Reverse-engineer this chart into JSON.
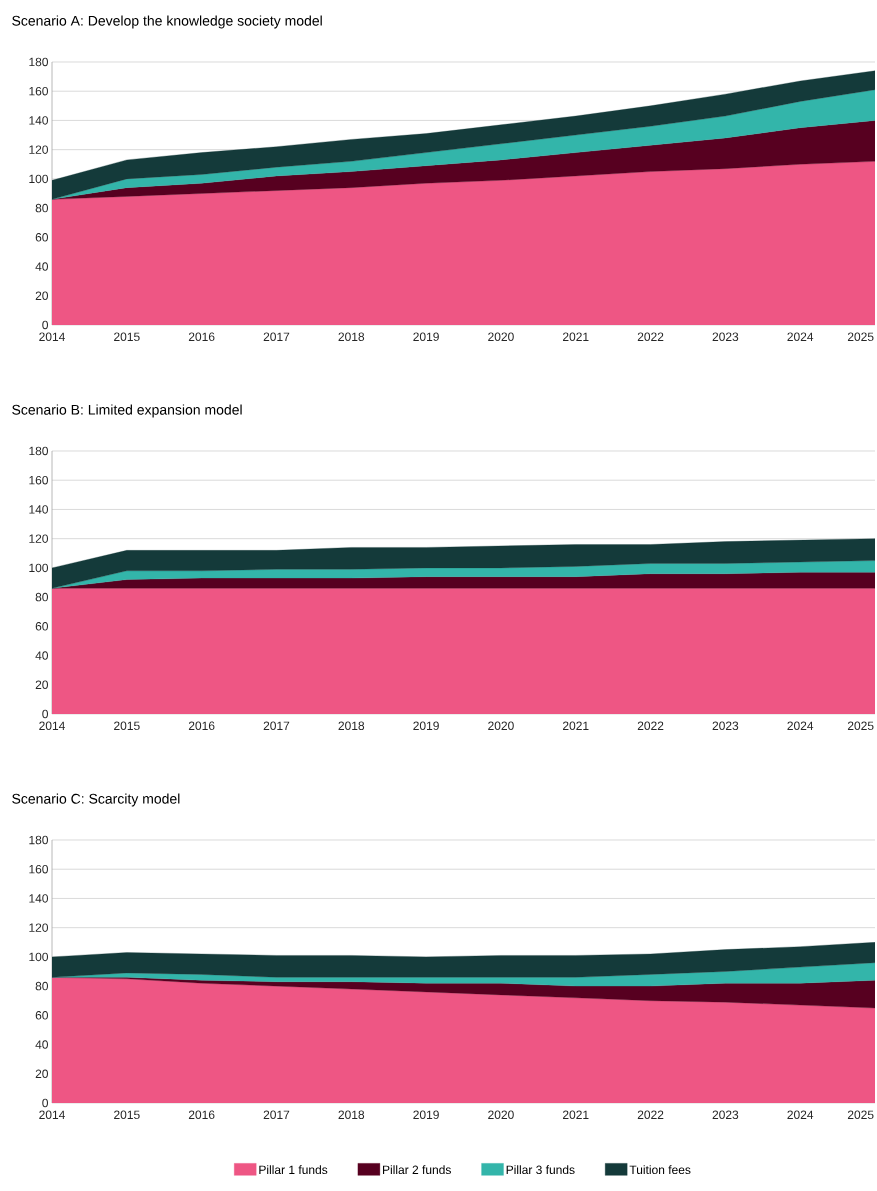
{
  "chart_data": [
    {
      "type": "area",
      "stacked": true,
      "title": "Scenario A: Develop the knowledge society model",
      "x": [
        2014,
        2015,
        2016,
        2017,
        2018,
        2019,
        2020,
        2021,
        2022,
        2023,
        2024,
        2025
      ],
      "xlim": [
        2014,
        2025
      ],
      "xticks": [
        2014,
        2015,
        2016,
        2017,
        2018,
        2019,
        2020,
        2021,
        2022,
        2023,
        2024,
        2025
      ],
      "ylim": [
        0,
        180
      ],
      "yticks": [
        0,
        20,
        40,
        60,
        80,
        100,
        120,
        140,
        160,
        180
      ],
      "grid": "y",
      "series": [
        {
          "color": "#ee5684",
          "values": [
            86,
            88,
            90,
            92,
            94,
            97,
            99,
            102,
            105,
            107,
            110,
            112
          ]
        },
        {
          "color": "#570020",
          "values": [
            0,
            6,
            7,
            10,
            11,
            12,
            14,
            16,
            18,
            21,
            25,
            28
          ]
        },
        {
          "color": "#33b5aa",
          "values": [
            0,
            6,
            6,
            6,
            7,
            9,
            11,
            12,
            13,
            15,
            18,
            21
          ]
        },
        {
          "color": "#143a3a",
          "values": [
            13,
            13,
            15,
            14,
            15,
            13,
            13,
            13,
            14,
            15,
            14,
            13
          ]
        }
      ]
    },
    {
      "type": "area",
      "stacked": true,
      "title": "Scenario B: Limited expansion model",
      "x": [
        2014,
        2015,
        2016,
        2017,
        2018,
        2019,
        2020,
        2021,
        2022,
        2023,
        2024,
        2025
      ],
      "xlim": [
        2014,
        2025
      ],
      "xticks": [
        2014,
        2015,
        2016,
        2017,
        2018,
        2019,
        2020,
        2021,
        2022,
        2023,
        2024,
        2025
      ],
      "ylim": [
        0,
        180
      ],
      "yticks": [
        0,
        20,
        40,
        60,
        80,
        100,
        120,
        140,
        160,
        180
      ],
      "grid": "y",
      "series": [
        {
          "color": "#ee5684",
          "values": [
            86,
            86,
            86,
            86,
            86,
            86,
            86,
            86,
            86,
            86,
            86,
            86
          ]
        },
        {
          "color": "#570020",
          "values": [
            0,
            6,
            7,
            7,
            7,
            8,
            8,
            8,
            10,
            10,
            11,
            11
          ]
        },
        {
          "color": "#33b5aa",
          "values": [
            0,
            6,
            5,
            6,
            6,
            6,
            6,
            7,
            7,
            7,
            7,
            8
          ]
        },
        {
          "color": "#143a3a",
          "values": [
            14,
            14,
            14,
            13,
            15,
            14,
            15,
            15,
            13,
            15,
            15,
            15
          ]
        }
      ]
    },
    {
      "type": "area",
      "stacked": true,
      "title": "Scenario C: Scarcity model",
      "x": [
        2014,
        2015,
        2016,
        2017,
        2018,
        2019,
        2020,
        2021,
        2022,
        2023,
        2024,
        2025
      ],
      "xlim": [
        2014,
        2025
      ],
      "xticks": [
        2014,
        2015,
        2016,
        2017,
        2018,
        2019,
        2020,
        2021,
        2022,
        2023,
        2024,
        2025
      ],
      "ylim": [
        0,
        180
      ],
      "yticks": [
        0,
        20,
        40,
        60,
        80,
        100,
        120,
        140,
        160,
        180
      ],
      "grid": "y",
      "legend": "bottom",
      "series": [
        {
          "name": "Pillar 1 funds",
          "color": "#ee5684",
          "values": [
            86,
            85,
            82,
            80,
            78,
            76,
            74,
            72,
            70,
            69,
            67,
            65
          ]
        },
        {
          "name": "Pillar 2 funds",
          "color": "#570020",
          "values": [
            0,
            1,
            2,
            3,
            5,
            6,
            8,
            8,
            10,
            13,
            15,
            19
          ]
        },
        {
          "name": "Pillar 3 funds",
          "color": "#33b5aa",
          "values": [
            0,
            3,
            4,
            3,
            3,
            4,
            4,
            6,
            8,
            8,
            11,
            12
          ]
        },
        {
          "name": "Tuition fees",
          "color": "#143a3a",
          "values": [
            14,
            14,
            14,
            15,
            15,
            14,
            15,
            15,
            14,
            15,
            14,
            14
          ]
        }
      ]
    }
  ]
}
